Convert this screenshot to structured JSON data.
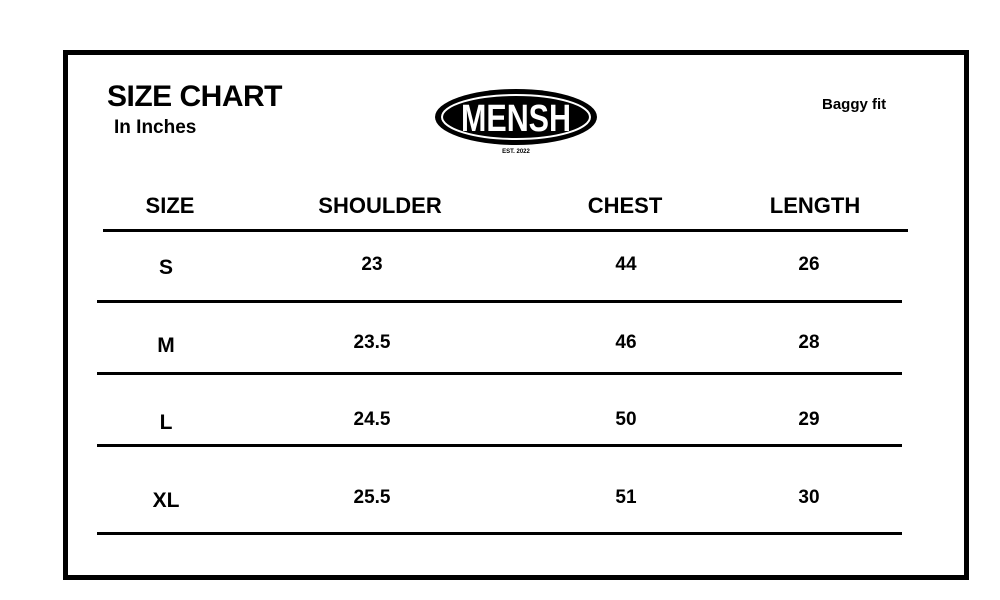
{
  "header": {
    "title": "SIZE CHART",
    "unit": "In Inches",
    "fit": "Baggy fit"
  },
  "logo": {
    "brand": "MENSH",
    "est": "EST. 2022"
  },
  "table": {
    "columns": [
      "SIZE",
      "SHOULDER",
      "CHEST",
      "LENGTH"
    ],
    "rows": [
      [
        "S",
        "23",
        "44",
        "26"
      ],
      [
        "M",
        "23.5",
        "46",
        "28"
      ],
      [
        "L",
        "24.5",
        "50",
        "29"
      ],
      [
        "XL",
        "25.5",
        "51",
        "30"
      ]
    ]
  }
}
